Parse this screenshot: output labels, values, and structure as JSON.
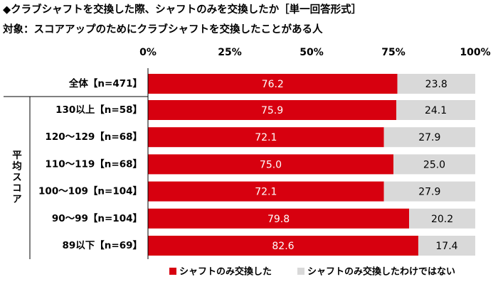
{
  "chart_data": {
    "type": "stacked-bar-horizontal",
    "title": "◆クラブシャフトを交換した際、シャフトのみを交換したか［単一回答形式］",
    "subtitle": "対象：スコアアップのためにクラブシャフトを交換したことがある人",
    "category_group": "平均スコア",
    "categories": [
      "全体【n=471】",
      "130以上【n=58】",
      "120～129【n=68】",
      "110～119【n=68】",
      "100～109【n=104】",
      "90～99【n=104】",
      "89以下【n=69】"
    ],
    "series": [
      {
        "name": "シャフトのみ交換した",
        "color": "#d7000f",
        "label_color": "#ffffff",
        "values": [
          76.2,
          75.9,
          72.1,
          75.0,
          72.1,
          79.8,
          82.6
        ],
        "value_labels": [
          "76.2",
          "75.9",
          "72.1",
          "75.0",
          "72.1",
          "79.8",
          "82.6"
        ]
      },
      {
        "name": "シャフトのみ交換したわけではない",
        "color": "#d9d9d9",
        "label_color": "#000000",
        "values": [
          23.8,
          24.1,
          27.9,
          25.0,
          27.9,
          20.2,
          17.4
        ],
        "value_labels": [
          "23.8",
          "24.1",
          "27.9",
          "25.0",
          "27.9",
          "20.2",
          "17.4"
        ]
      }
    ],
    "xlim": [
      0,
      100
    ],
    "xticks": [
      {
        "value": 0,
        "label": "0%"
      },
      {
        "value": 25,
        "label": "25%"
      },
      {
        "value": 50,
        "label": "50%"
      },
      {
        "value": 75,
        "label": "75%"
      },
      {
        "value": 100,
        "label": "100%"
      }
    ]
  }
}
